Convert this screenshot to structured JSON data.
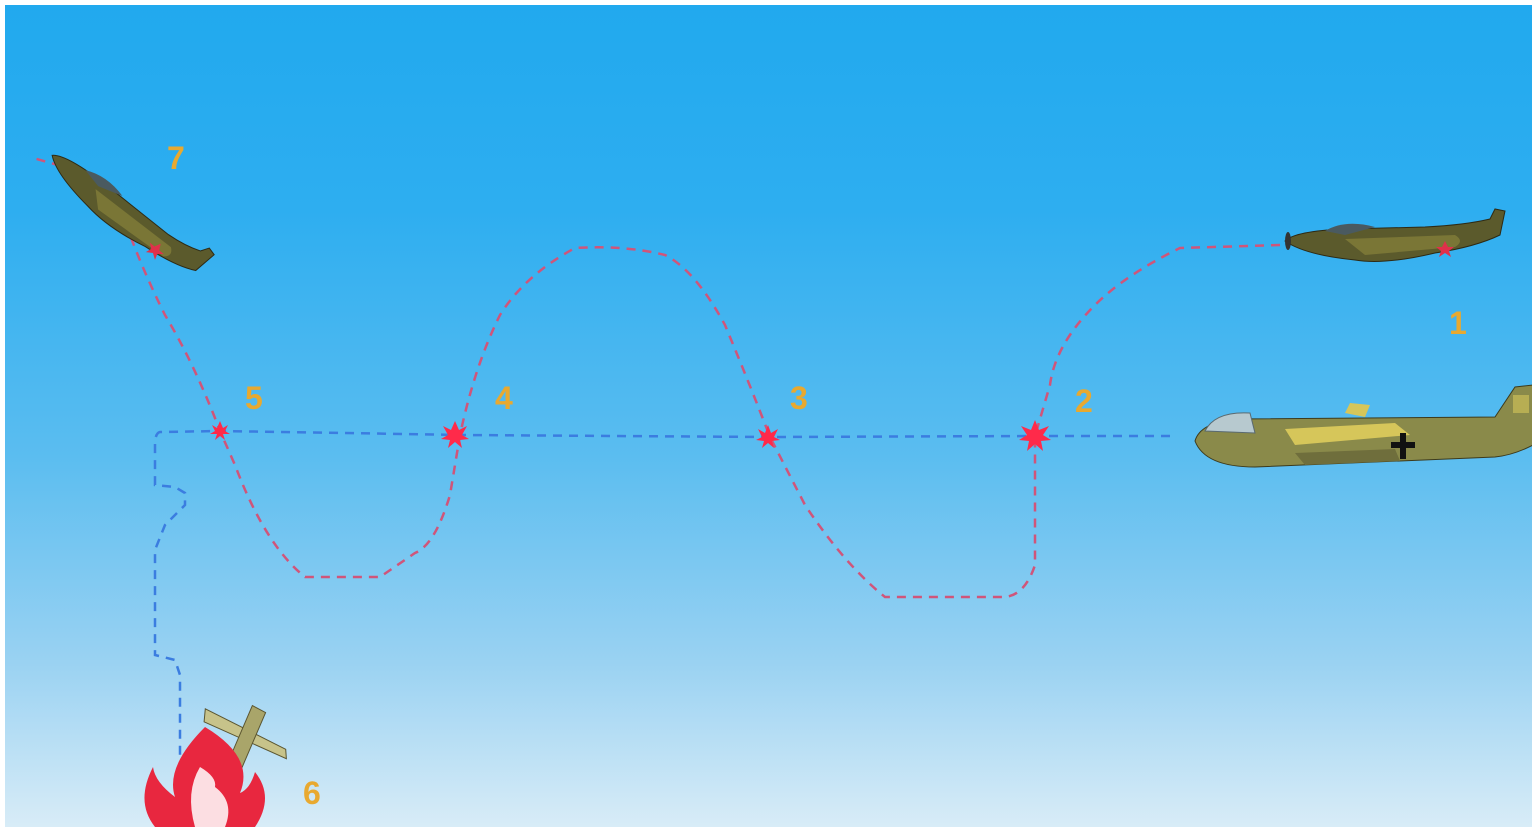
{
  "steps": [
    {
      "number": "1"
    },
    {
      "number": "2"
    },
    {
      "number": "3"
    },
    {
      "number": "4"
    },
    {
      "number": "5"
    },
    {
      "number": "6"
    },
    {
      "number": "7"
    }
  ],
  "colors": {
    "sky_top": "#21a9ee",
    "sky_bottom": "#d8ecf7",
    "fighter_path": "#d0557a",
    "bomber_path": "#3b7de0",
    "hit_burst": "#ff2a4a",
    "step_number": "#e8a930",
    "fire": "#e8273f"
  }
}
